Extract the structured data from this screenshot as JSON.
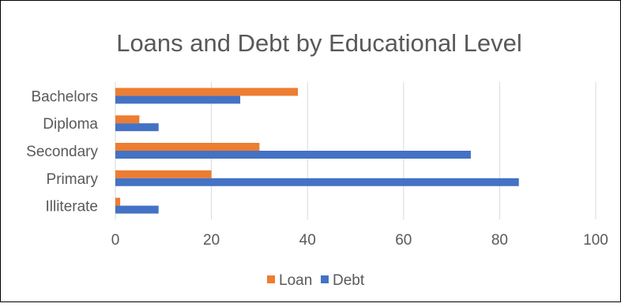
{
  "chart_data": {
    "type": "bar",
    "orientation": "horizontal",
    "title": "Loans and Debt by Educational Level",
    "categories": [
      "Bachelors",
      "Diploma",
      "Secondary",
      "Primary",
      "Illiterate"
    ],
    "series": [
      {
        "name": "Loan",
        "color": "#ED7D31",
        "values": [
          38,
          5,
          30,
          20,
          1
        ]
      },
      {
        "name": "Debt",
        "color": "#4472C4",
        "values": [
          26,
          9,
          74,
          84,
          9
        ]
      }
    ],
    "x_ticks": [
      "0",
      "20",
      "40",
      "60",
      "80",
      "100"
    ],
    "xlim": [
      0,
      100
    ],
    "grid": true,
    "legend_position": "bottom"
  }
}
